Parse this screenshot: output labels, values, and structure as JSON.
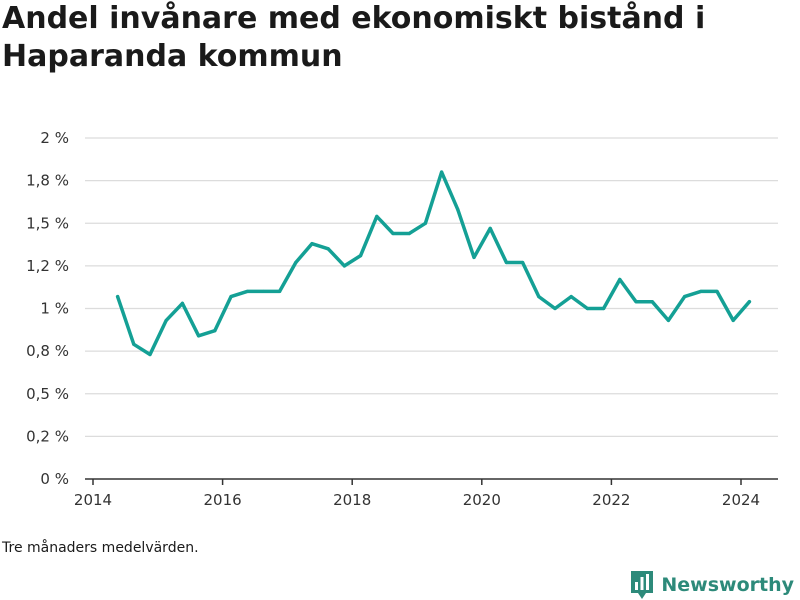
{
  "title": "Andel invånare med ekonomiskt bistånd i Haparanda kommun",
  "note": "Tre månaders medelvärden.",
  "brand": {
    "name": "Newsworthy",
    "icon": "bar-chart-logo-icon",
    "color": "#2d8a7a"
  },
  "chart_data": {
    "type": "line",
    "line_color": "#14a095",
    "grid": true,
    "xlim": [
      2014,
      2024.6
    ],
    "ylim": [
      0,
      2
    ],
    "x_ticks": [
      {
        "value": 2014,
        "label": "2014"
      },
      {
        "value": 2016,
        "label": "2016"
      },
      {
        "value": 2018,
        "label": "2018"
      },
      {
        "value": 2020,
        "label": "2020"
      },
      {
        "value": 2022,
        "label": "2022"
      },
      {
        "value": 2024,
        "label": "2024"
      }
    ],
    "y_ticks": [
      {
        "value": 0,
        "label": "0 %"
      },
      {
        "value": 0.25,
        "label": "0,2 %"
      },
      {
        "value": 0.5,
        "label": "0,5 %"
      },
      {
        "value": 0.75,
        "label": "0,8 %"
      },
      {
        "value": 1,
        "label": "1 %"
      },
      {
        "value": 1.25,
        "label": "1,2 %"
      },
      {
        "value": 1.5,
        "label": "1,5 %"
      },
      {
        "value": 1.75,
        "label": "1,8 %"
      },
      {
        "value": 2,
        "label": "2 %"
      }
    ],
    "series": [
      {
        "x": [
          2014.38,
          2014.63,
          2014.88,
          2015.13,
          2015.38,
          2015.63,
          2015.88,
          2016.13,
          2016.38,
          2016.63,
          2016.88,
          2017.13,
          2017.38,
          2017.63,
          2017.88,
          2018.13,
          2018.38,
          2018.63,
          2018.88,
          2019.13,
          2019.38,
          2019.63,
          2019.88,
          2020.13,
          2020.38,
          2020.63,
          2020.88,
          2021.13,
          2021.38,
          2021.63,
          2021.88,
          2022.13,
          2022.38,
          2022.63,
          2022.88,
          2023.13,
          2023.38,
          2023.63,
          2023.88,
          2024.13
        ],
        "values": [
          1.07,
          0.79,
          0.73,
          0.93,
          1.03,
          0.84,
          0.87,
          1.07,
          1.1,
          1.1,
          1.1,
          1.27,
          1.38,
          1.35,
          1.25,
          1.31,
          1.54,
          1.44,
          1.44,
          1.5,
          1.8,
          1.58,
          1.3,
          1.47,
          1.27,
          1.27,
          1.07,
          1.0,
          1.07,
          1.0,
          1.0,
          1.17,
          1.04,
          1.04,
          0.93,
          1.07,
          1.1,
          1.1,
          0.93,
          1.04
        ]
      }
    ]
  }
}
